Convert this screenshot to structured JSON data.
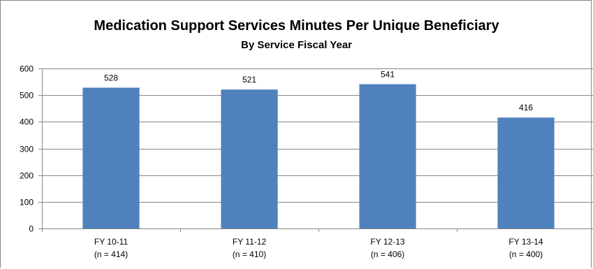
{
  "chart_data": {
    "type": "bar",
    "title": "Medication Support Services Minutes Per Unique Beneficiary",
    "subtitle": "By Service Fiscal Year",
    "categories": [
      "FY 10-11",
      "FY 11-12",
      "FY 12-13",
      "FY 13-14"
    ],
    "category_sublabels": [
      "(n = 414)",
      "(n = 410)",
      "(n = 406)",
      "(n = 400)"
    ],
    "values": [
      528,
      521,
      541,
      416
    ],
    "data_labels": [
      "528",
      "521",
      "541",
      "416"
    ],
    "ylim": [
      0,
      600
    ],
    "yticks": [
      0,
      100,
      200,
      300,
      400,
      500,
      600
    ],
    "grid": true,
    "legend": "none",
    "bar_color": "#4F81BD",
    "grid_color": "#868686"
  }
}
